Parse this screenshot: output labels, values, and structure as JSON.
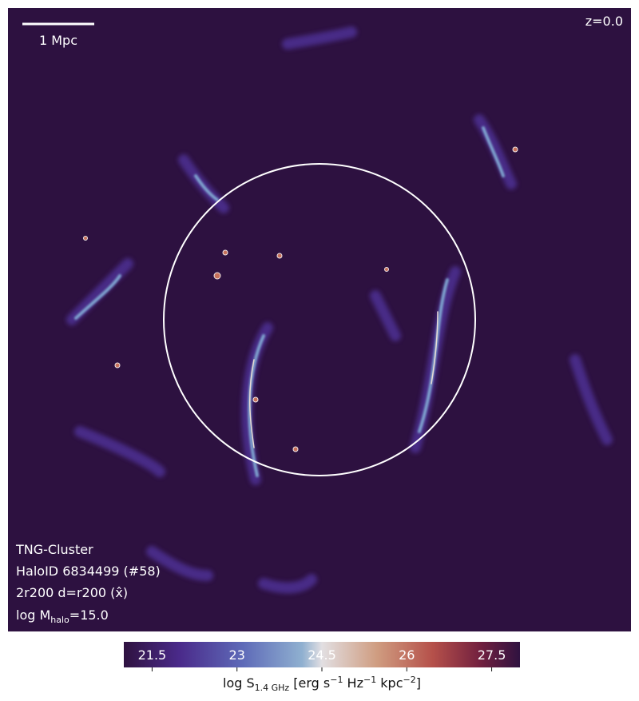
{
  "image": {
    "scale_bar_label": "1 Mpc",
    "redshift": "z=0.0",
    "annotations": [
      "TNG-Cluster",
      "HaloID 6834499 (#58)",
      "2r200 d=r200 (x̂)"
    ],
    "mass_label": [
      "log M",
      "halo",
      "=15.0"
    ]
  },
  "colorbar": {
    "lim": [
      21.0,
      28.0
    ],
    "ticks": [
      21.5,
      23.0,
      24.5,
      26.0,
      27.5
    ],
    "label": [
      "log S",
      "1.4 GHz",
      " [erg s",
      "−1",
      " Hz",
      "−1",
      " kpc",
      "−2",
      "]"
    ]
  }
}
